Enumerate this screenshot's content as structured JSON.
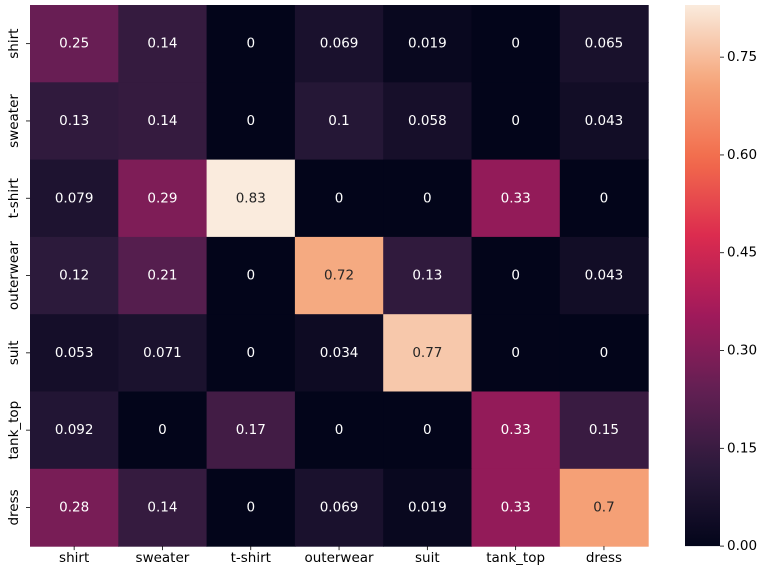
{
  "chart_data": {
    "type": "heatmap",
    "title": "",
    "xlabel": "",
    "ylabel": "",
    "x_categories": [
      "shirt",
      "sweater",
      "t-shirt",
      "outerwear",
      "suit",
      "tank_top",
      "dress"
    ],
    "y_categories": [
      "shirt",
      "sweater",
      "t-shirt",
      "outerwear",
      "suit",
      "tank_top",
      "dress"
    ],
    "values": [
      [
        0.25,
        0.14,
        0,
        0.069,
        0.019,
        0,
        0.065
      ],
      [
        0.13,
        0.14,
        0,
        0.1,
        0.058,
        0,
        0.043
      ],
      [
        0.079,
        0.29,
        0.83,
        0,
        0,
        0.33,
        0
      ],
      [
        0.12,
        0.21,
        0,
        0.72,
        0.13,
        0,
        0.043
      ],
      [
        0.053,
        0.071,
        0,
        0.034,
        0.77,
        0,
        0
      ],
      [
        0.092,
        0,
        0.17,
        0,
        0,
        0.33,
        0.15
      ],
      [
        0.28,
        0.14,
        0,
        0.069,
        0.019,
        0.33,
        0.7
      ]
    ],
    "cell_labels": [
      [
        "0.25",
        "0.14",
        "0",
        "0.069",
        "0.019",
        "0",
        "0.065"
      ],
      [
        "0.13",
        "0.14",
        "0",
        "0.1",
        "0.058",
        "0",
        "0.043"
      ],
      [
        "0.079",
        "0.29",
        "0.83",
        "0",
        "0",
        "0.33",
        "0"
      ],
      [
        "0.12",
        "0.21",
        "0",
        "0.72",
        "0.13",
        "0",
        "0.043"
      ],
      [
        "0.053",
        "0.071",
        "0",
        "0.034",
        "0.77",
        "0",
        "0"
      ],
      [
        "0.092",
        "0",
        "0.17",
        "0",
        "0",
        "0.33",
        "0.15"
      ],
      [
        "0.28",
        "0.14",
        "0",
        "0.069",
        "0.019",
        "0.33",
        "0.7"
      ]
    ],
    "colorbar": {
      "range": [
        0,
        0.83
      ],
      "ticks": [
        0.0,
        0.15,
        0.3,
        0.45,
        0.6,
        0.75
      ],
      "tick_labels": [
        "0.00",
        "0.15",
        "0.30",
        "0.45",
        "0.60",
        "0.75"
      ]
    },
    "colormap": "rocket",
    "colormap_stops": [
      "#03051a",
      "#2b1a3b",
      "#611f53",
      "#a11a5b",
      "#db2a4f",
      "#f26c4c",
      "#f5a57a",
      "#faebdd"
    ],
    "annotation_color_dark_bg": "#ffffff",
    "annotation_color_light_bg": "#262626"
  }
}
